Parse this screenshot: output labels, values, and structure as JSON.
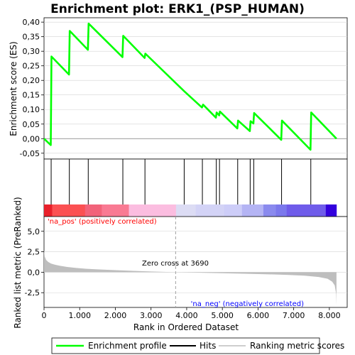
{
  "title": "Enrichment plot: ERK1_(PSP_HUMAN)",
  "colors": {
    "enrichment_line": "#00ff00",
    "hits": "#000000",
    "ranking_fill": "#bebebe",
    "pos_label": "#ff0000",
    "neg_label": "#0000ff",
    "grid": "#d3d3d3"
  },
  "chart_data": [
    {
      "type": "line",
      "name": "enrichment-profile",
      "ylabel": "Enrichment score (ES)",
      "xlim": [
        0,
        8500
      ],
      "ylim": [
        -0.07,
        0.415
      ],
      "yticks": [
        -0.05,
        0.0,
        0.05,
        0.1,
        0.15,
        0.2,
        0.25,
        0.3,
        0.35,
        0.4
      ],
      "ytick_labels": [
        "-0,05",
        "0,00",
        "0,05",
        "0,10",
        "0,15",
        "0,20",
        "0,25",
        "0,30",
        "0,35",
        "0,40"
      ],
      "grid": true,
      "series": [
        {
          "name": "Enrichment profile",
          "x": [
            0,
            190,
            210,
            700,
            720,
            1230,
            1250,
            2200,
            2220,
            2820,
            2840,
            3930,
            4430,
            4460,
            4820,
            4840,
            4910,
            4930,
            5420,
            5440,
            5770,
            5790,
            5870,
            5890,
            6650,
            6670,
            7470,
            7490,
            8200
          ],
          "y": [
            0.0,
            -0.022,
            0.282,
            0.22,
            0.37,
            0.305,
            0.395,
            0.28,
            0.353,
            0.277,
            0.292,
            0.163,
            0.107,
            0.117,
            0.072,
            0.09,
            0.08,
            0.093,
            0.035,
            0.062,
            0.026,
            0.06,
            0.052,
            0.088,
            -0.004,
            0.062,
            -0.038,
            0.09,
            0.0
          ]
        }
      ]
    },
    {
      "type": "hits",
      "name": "hits",
      "xlim": [
        0,
        8500
      ],
      "positions": [
        200,
        710,
        1240,
        2210,
        2830,
        3930,
        4440,
        4830,
        4920,
        5430,
        5780,
        5880,
        6660,
        7480
      ]
    },
    {
      "type": "heatbar",
      "name": "ranking-heatbar",
      "xlim": [
        0,
        8500
      ],
      "segments": [
        {
          "from": 0,
          "to": 230,
          "color": "#e8202a"
        },
        {
          "from": 230,
          "to": 1150,
          "color": "#fb5052"
        },
        {
          "from": 1150,
          "to": 1620,
          "color": "#f2637a"
        },
        {
          "from": 1620,
          "to": 2380,
          "color": "#f97a93"
        },
        {
          "from": 2380,
          "to": 3700,
          "color": "#fbbde0"
        },
        {
          "from": 3700,
          "to": 4250,
          "color": "#dcdcf4"
        },
        {
          "from": 4250,
          "to": 5050,
          "color": "#d3d3f6"
        },
        {
          "from": 5050,
          "to": 5550,
          "color": "#cdcdf8"
        },
        {
          "from": 5550,
          "to": 6150,
          "color": "#b4b4f4"
        },
        {
          "from": 6150,
          "to": 6500,
          "color": "#8a8aee"
        },
        {
          "from": 6500,
          "to": 6800,
          "color": "#7b78ec"
        },
        {
          "from": 6800,
          "to": 7900,
          "color": "#6f5cea"
        },
        {
          "from": 7900,
          "to": 8200,
          "color": "#3300dd"
        }
      ]
    },
    {
      "type": "area",
      "name": "ranked-list-metric",
      "xlabel": "Rank in Ordered Dataset",
      "ylabel": "Ranked list metric (PreRanked)",
      "xlim": [
        0,
        8500
      ],
      "ylim": [
        -4.3,
        6.8
      ],
      "xticks": [
        0,
        1000,
        2000,
        3000,
        4000,
        5000,
        6000,
        7000,
        8000
      ],
      "xtick_labels": [
        "0",
        "1.000",
        "2.000",
        "3.000",
        "4.000",
        "5.000",
        "6.000",
        "7.000",
        "8.000"
      ],
      "yticks": [
        -2.5,
        0.0,
        2.5,
        5.0
      ],
      "ytick_labels": [
        "-2,5",
        "0,0",
        "2,5",
        "5,0"
      ],
      "zero_cross": 3690,
      "zero_cross_label": "Zero cross at 3690",
      "pos_label": "'na_pos' (positively correlated)",
      "neg_label": "'na_neg' (negatively correlated)",
      "x": [
        0,
        20,
        60,
        120,
        200,
        300,
        450,
        650,
        900,
        1200,
        1600,
        2000,
        2500,
        3000,
        3690,
        4500,
        5500,
        6200,
        6800,
        7300,
        7700,
        7950,
        8080,
        8150,
        8190,
        8200
      ],
      "y": [
        2.7,
        1.9,
        1.5,
        1.25,
        1.05,
        0.92,
        0.78,
        0.64,
        0.52,
        0.42,
        0.33,
        0.25,
        0.17,
        0.09,
        0.0,
        -0.08,
        -0.17,
        -0.24,
        -0.32,
        -0.42,
        -0.58,
        -0.8,
        -1.15,
        -1.6,
        -2.6,
        -4.0
      ]
    }
  ],
  "legend": {
    "items": [
      {
        "label": "Enrichment profile",
        "color": "#00ff00"
      },
      {
        "label": "Hits",
        "color": "#000000"
      },
      {
        "label": "Ranking metric scores",
        "color": "#bebebe"
      }
    ]
  }
}
